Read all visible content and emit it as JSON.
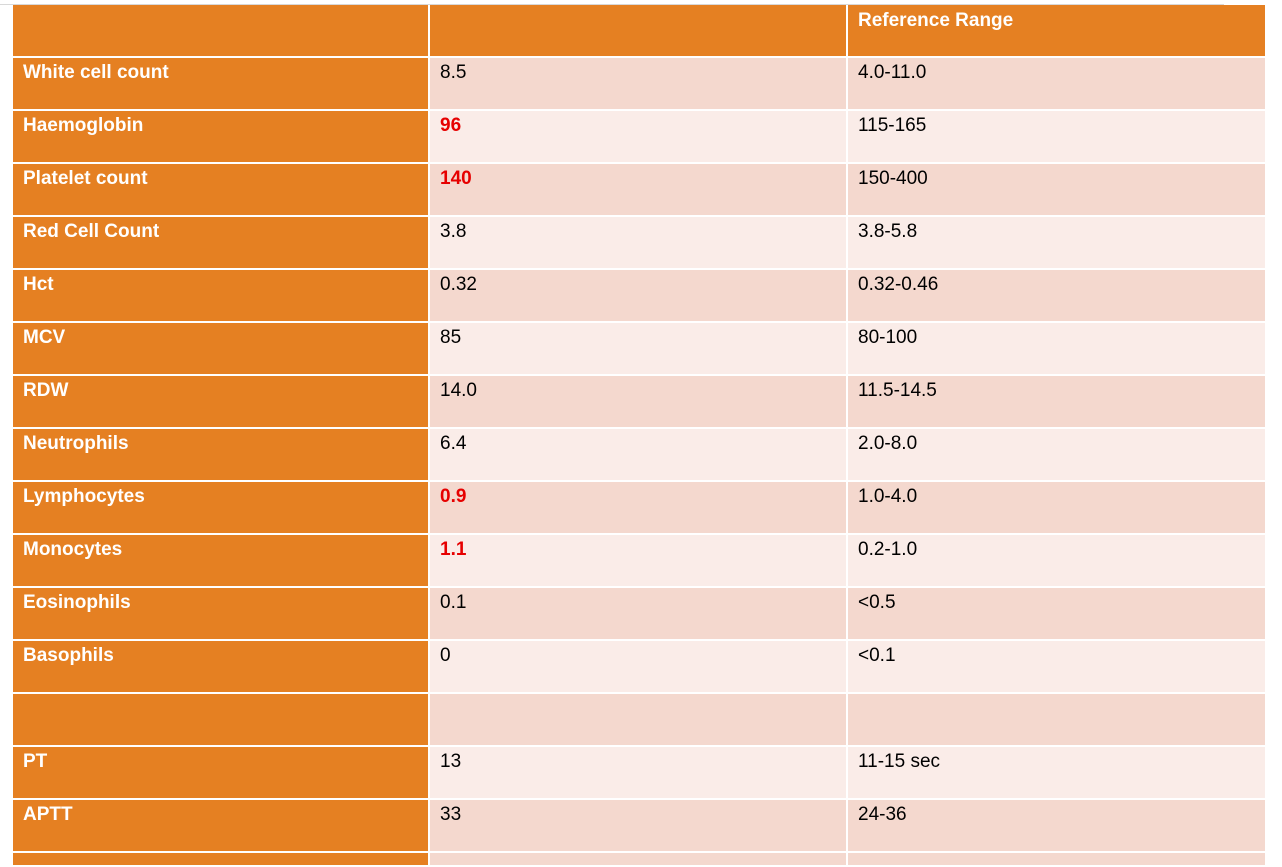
{
  "table": {
    "header": [
      "",
      "",
      "Reference Range"
    ],
    "rows": [
      {
        "label": "White cell count",
        "value": "8.5",
        "range": "4.0-11.0",
        "flagged": false
      },
      {
        "label": "Haemoglobin",
        "value": "96",
        "range": "115-165",
        "flagged": true
      },
      {
        "label": "Platelet count",
        "value": "140",
        "range": "150-400",
        "flagged": true
      },
      {
        "label": "Red Cell Count",
        "value": "3.8",
        "range": "3.8-5.8",
        "flagged": false
      },
      {
        "label": "Hct",
        "value": "0.32",
        "range": "0.32-0.46",
        "flagged": false
      },
      {
        "label": "MCV",
        "value": "85",
        "range": "80-100",
        "flagged": false
      },
      {
        "label": "RDW",
        "value": "14.0",
        "range": "11.5-14.5",
        "flagged": false
      },
      {
        "label": "Neutrophils",
        "value": "6.4",
        "range": "2.0-8.0",
        "flagged": false
      },
      {
        "label": "Lymphocytes",
        "value": "0.9",
        "range": "1.0-4.0",
        "flagged": true
      },
      {
        "label": "Monocytes",
        "value": "1.1",
        "range": "0.2-1.0",
        "flagged": true
      },
      {
        "label": "Eosinophils",
        "value": "0.1",
        "range": "<0.5",
        "flagged": false
      },
      {
        "label": "Basophils",
        "value": "0",
        "range": "<0.1",
        "flagged": false
      },
      {
        "label": "",
        "value": "",
        "range": "",
        "flagged": false
      },
      {
        "label": "PT",
        "value": "13",
        "range": "11-15 sec",
        "flagged": false
      },
      {
        "label": "APTT",
        "value": "33",
        "range": "24-36",
        "flagged": false
      }
    ]
  },
  "colors": {
    "header_bg": "#e58022",
    "label_bg": "#e58022",
    "row_odd_bg": "#f4d8ce",
    "row_even_bg": "#faece8",
    "flag_text": "#e60000"
  }
}
